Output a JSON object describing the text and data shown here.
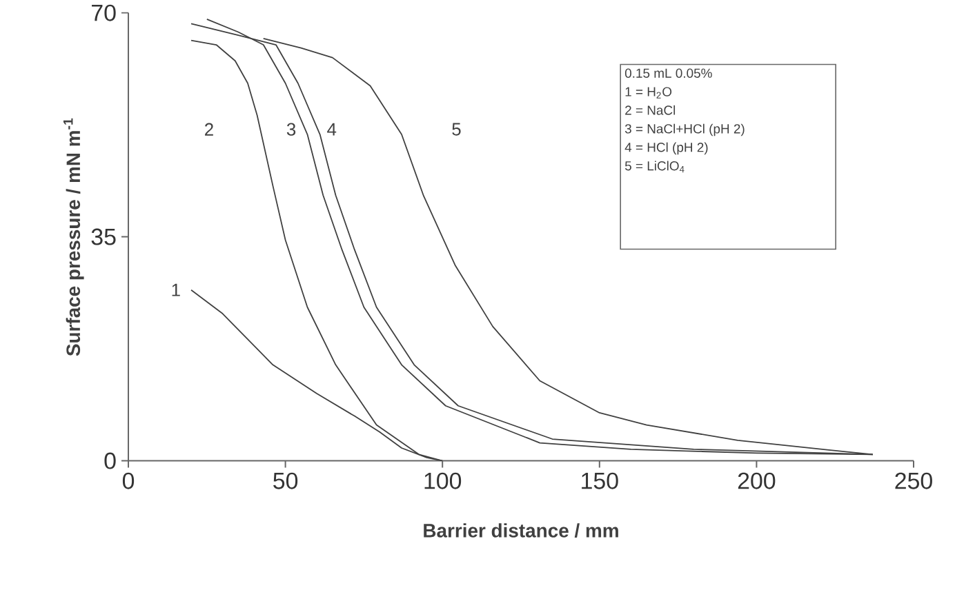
{
  "chart_data": {
    "type": "line",
    "xlabel": "Barrier distance / mm",
    "ylabel": "Surface pressure / mN m$^{-1}$",
    "xlim": [
      0,
      250
    ],
    "xticks": [
      0,
      50,
      100,
      150,
      200,
      250
    ],
    "ylim": [
      0,
      70
    ],
    "yticks": [
      0,
      35,
      70
    ],
    "marker": "none",
    "line_style": "solid",
    "grid": false,
    "legend": false,
    "series": [
      {
        "name": "1",
        "color": "#404040",
        "x": [
          20,
          30,
          46,
          60,
          72,
          80,
          87,
          95,
          100
        ],
        "values": [
          26.7,
          23,
          15,
          10.5,
          7,
          4.5,
          2,
          0.5,
          0
        ]
      },
      {
        "name": "2",
        "color": "#404040",
        "x": [
          20,
          28,
          34,
          38,
          41,
          46,
          50,
          57,
          66,
          79,
          92.5,
          100
        ],
        "values": [
          65.7,
          65,
          62.5,
          59,
          54,
          43,
          34.5,
          24,
          15,
          5.6,
          1,
          0
        ]
      },
      {
        "name": "3",
        "color": "#404040",
        "x": [
          25,
          35,
          43,
          50,
          57,
          62,
          68,
          75,
          87,
          101,
          131,
          160,
          200,
          237
        ],
        "values": [
          69,
          67,
          65,
          59,
          51,
          41.5,
          33,
          24,
          15,
          8.6,
          2.8,
          1.8,
          1.2,
          1
        ]
      },
      {
        "name": "4",
        "color": "#404040",
        "x": [
          20,
          35,
          47,
          54,
          61,
          66,
          72,
          79,
          91,
          105,
          135,
          180,
          237
        ],
        "values": [
          68.3,
          66.5,
          65,
          59,
          51,
          41.5,
          33,
          24,
          15,
          8.6,
          3.4,
          1.8,
          1
        ]
      },
      {
        "name": "5",
        "color": "#404040",
        "x": [
          43,
          55,
          65,
          77,
          87,
          94,
          104,
          116,
          131,
          150,
          165,
          194,
          223,
          237
        ],
        "values": [
          66,
          64.5,
          63,
          58.6,
          51,
          41.4,
          30.6,
          21,
          12.5,
          7.5,
          5.6,
          3.2,
          1.7,
          1
        ]
      }
    ],
    "annotations": [
      "0.15 mL 0.05%",
      "1 = H$_{2}$O",
      "2 = NaCl",
      "3 = NaCl+HCl (pH 2)",
      "4 = HCl (pH 2)",
      "5 = LiClO$_{4}$"
    ]
  }
}
